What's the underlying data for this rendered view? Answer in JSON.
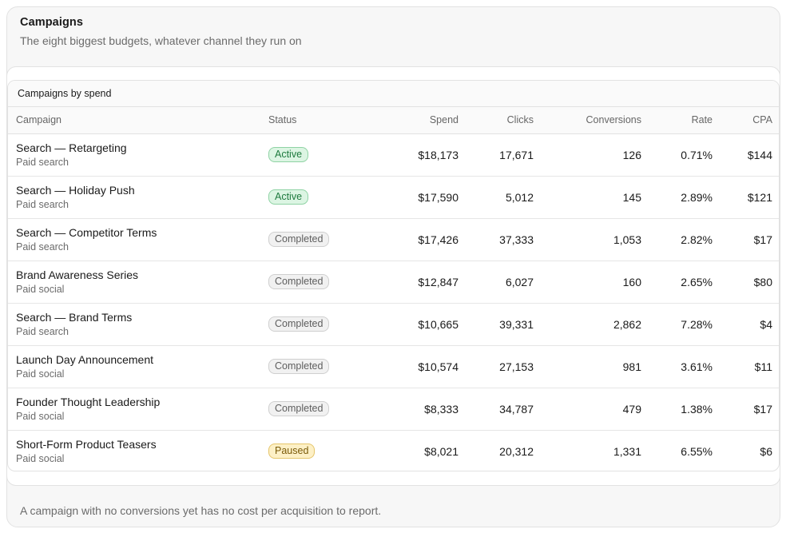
{
  "card": {
    "title": "Campaigns",
    "subtitle": "The eight biggest budgets, whatever channel they run on",
    "footnote": "A campaign with no conversions yet has no cost per acquisition to report."
  },
  "table": {
    "caption": "Campaigns by spend",
    "headers": {
      "campaign": "Campaign",
      "status": "Status",
      "spend": "Spend",
      "clicks": "Clicks",
      "conversions": "Conversions",
      "rate": "Rate",
      "cpa": "CPA"
    },
    "rows": [
      {
        "name": "Search — Retargeting",
        "channel": "Paid search",
        "status": "Active",
        "status_kind": "active",
        "spend": "$18,173",
        "clicks": "17,671",
        "conversions": "126",
        "rate": "0.71%",
        "cpa": "$144"
      },
      {
        "name": "Search — Holiday Push",
        "channel": "Paid search",
        "status": "Active",
        "status_kind": "active",
        "spend": "$17,590",
        "clicks": "5,012",
        "conversions": "145",
        "rate": "2.89%",
        "cpa": "$121"
      },
      {
        "name": "Search — Competitor Terms",
        "channel": "Paid search",
        "status": "Completed",
        "status_kind": "completed",
        "spend": "$17,426",
        "clicks": "37,333",
        "conversions": "1,053",
        "rate": "2.82%",
        "cpa": "$17"
      },
      {
        "name": "Brand Awareness Series",
        "channel": "Paid social",
        "status": "Completed",
        "status_kind": "completed",
        "spend": "$12,847",
        "clicks": "6,027",
        "conversions": "160",
        "rate": "2.65%",
        "cpa": "$80"
      },
      {
        "name": "Search — Brand Terms",
        "channel": "Paid search",
        "status": "Completed",
        "status_kind": "completed",
        "spend": "$10,665",
        "clicks": "39,331",
        "conversions": "2,862",
        "rate": "7.28%",
        "cpa": "$4"
      },
      {
        "name": "Launch Day Announcement",
        "channel": "Paid social",
        "status": "Completed",
        "status_kind": "completed",
        "spend": "$10,574",
        "clicks": "27,153",
        "conversions": "981",
        "rate": "3.61%",
        "cpa": "$11"
      },
      {
        "name": "Founder Thought Leadership",
        "channel": "Paid social",
        "status": "Completed",
        "status_kind": "completed",
        "spend": "$8,333",
        "clicks": "34,787",
        "conversions": "479",
        "rate": "1.38%",
        "cpa": "$17"
      },
      {
        "name": "Short-Form Product Teasers",
        "channel": "Paid social",
        "status": "Paused",
        "status_kind": "paused",
        "spend": "$8,021",
        "clicks": "20,312",
        "conversions": "1,331",
        "rate": "6.55%",
        "cpa": "$6"
      }
    ]
  },
  "colors": {
    "active": "#1e7a3e",
    "completed": "#5e5e5e",
    "paused": "#7a5a08"
  }
}
